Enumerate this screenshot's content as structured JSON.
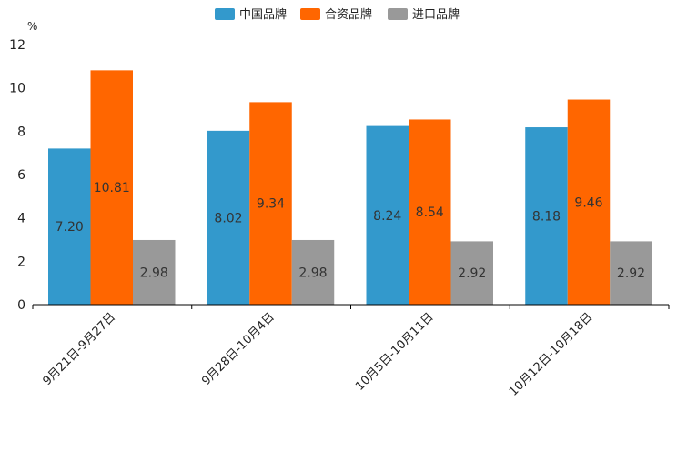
{
  "chart_data": {
    "type": "bar",
    "title": "",
    "xlabel": "",
    "ylabel": "%",
    "ylim": [
      0,
      12
    ],
    "yticks": [
      0,
      2,
      4,
      6,
      8,
      10,
      12
    ],
    "grid": false,
    "legend_position": "top-center",
    "categories": [
      "9月21日-9月27日",
      "9月28日-10月4日",
      "10月5日-10月11日",
      "10月12日-10月18日"
    ],
    "series": [
      {
        "name": "中国品牌",
        "color": "#3399cc",
        "values": [
          7.2,
          8.02,
          8.24,
          8.18
        ],
        "labels": [
          "7.20",
          "8.02",
          "8.24",
          "8.18"
        ]
      },
      {
        "name": "合资品牌",
        "color": "#ff6600",
        "values": [
          10.81,
          9.34,
          8.54,
          9.46
        ],
        "labels": [
          "10.81",
          "9.34",
          "8.54",
          "9.46"
        ]
      },
      {
        "name": "进口品牌",
        "color": "#999999",
        "values": [
          2.98,
          2.98,
          2.92,
          2.92
        ],
        "labels": [
          "2.98",
          "2.98",
          "2.92",
          "2.92"
        ]
      }
    ]
  }
}
